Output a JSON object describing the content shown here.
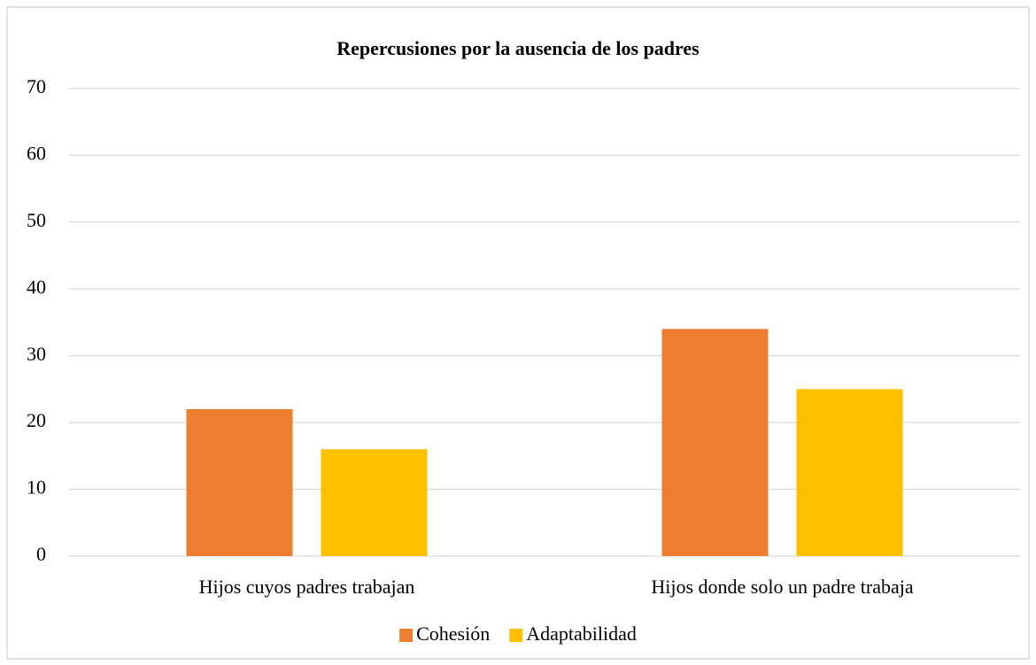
{
  "chart_data": {
    "type": "bar",
    "title": "Repercusiones por la ausencia de los padres",
    "categories": [
      "Hijos cuyos padres trabajan",
      "Hijos donde solo un padre trabaja"
    ],
    "series": [
      {
        "name": "Cohesión",
        "color": "#ed7d31",
        "values": [
          22,
          34
        ]
      },
      {
        "name": "Adaptabilidad",
        "color": "#ffc000",
        "values": [
          16,
          25
        ]
      }
    ],
    "ylim": [
      0,
      70
    ],
    "yticks": [
      0,
      10,
      20,
      30,
      40,
      50,
      60,
      70
    ],
    "grid": true,
    "legend": "bottom"
  }
}
